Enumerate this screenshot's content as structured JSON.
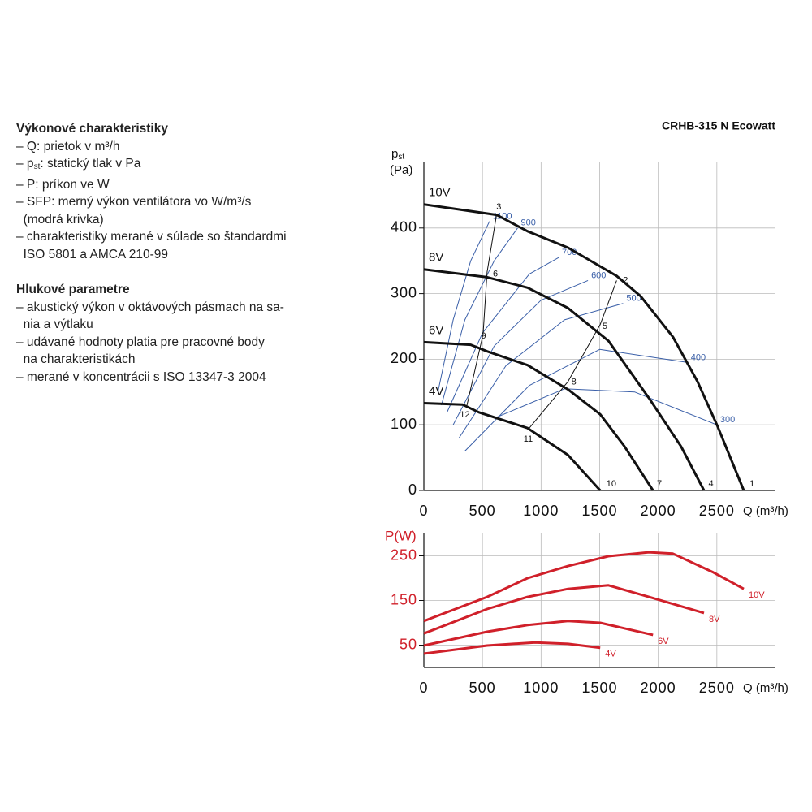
{
  "text": {
    "heading1": "Výkonové charakteristiky",
    "items1": [
      [
        {
          "t": "– Q: prietok v m³/h"
        }
      ],
      [
        {
          "t": "– p"
        },
        {
          "sub": "st"
        },
        {
          "t": ": statický tlak v Pa"
        }
      ],
      [
        {
          "t": "– P: príkon ve W"
        }
      ],
      [
        {
          "t": "– SFP: merný výkon ventilátora vo W/m³/s"
        }
      ],
      [
        {
          "t": "  (modrá krivka)"
        }
      ],
      [
        {
          "t": "– charakteristiky merané v súlade so štandardmi"
        }
      ],
      [
        {
          "t": "  ISO 5801 a AMCA 210-99"
        }
      ]
    ],
    "heading2": "Hlukové parametre",
    "items2": [
      [
        {
          "t": "– akustický výkon v oktávových pásmach na sa-"
        }
      ],
      [
        {
          "t": "  nia a výtlaku"
        }
      ],
      [
        {
          "t": "– udávané hodnoty platia pre pracovné body"
        }
      ],
      [
        {
          "t": "  na charakteristikách"
        }
      ],
      [
        {
          "t": "– merané v koncentrácii s ISO 13347-3 2004"
        }
      ]
    ]
  },
  "chart_data": [
    {
      "type": "line",
      "title": "CRHB-315 N Ecowatt",
      "ylabel": {
        "main": "p",
        "sub": "st",
        "unit": "(Pa)"
      },
      "xlabel": "Q (m³/h)",
      "xlim": [
        0,
        3000
      ],
      "ylim": [
        0,
        500
      ],
      "xticks": [
        0,
        500,
        1000,
        1500,
        2000,
        2500
      ],
      "yticks": [
        0,
        100,
        200,
        300,
        400
      ],
      "grid": true,
      "series": [
        {
          "name": "10V",
          "color": "#111111",
          "x": [
            0,
            620,
            885,
            1230,
            1645,
            1850,
            2125,
            2335,
            2505,
            2730
          ],
          "values": [
            436,
            420,
            395,
            370,
            327,
            296,
            234,
            166,
            98,
            0
          ]
        },
        {
          "name": "8V",
          "color": "#111111",
          "x": [
            0,
            540,
            885,
            1230,
            1575,
            1920,
            2195,
            2390
          ],
          "values": [
            337,
            325,
            309,
            278,
            228,
            141,
            67,
            0
          ]
        },
        {
          "name": "6V",
          "color": "#111111",
          "x": [
            0,
            400,
            540,
            885,
            1230,
            1505,
            1713,
            1955
          ],
          "values": [
            226,
            222,
            212,
            191,
            154,
            116,
            67,
            0
          ]
        },
        {
          "name": "4V",
          "color": "#111111",
          "x": [
            0,
            330,
            470,
            885,
            1230,
            1505
          ],
          "values": [
            133,
            131,
            119,
            95,
            54,
            0
          ]
        }
      ],
      "sfp_series": [
        {
          "name": "1100",
          "color": "#3a5fa8",
          "x": [
            120,
            250,
            400,
            560
          ],
          "values": [
            150,
            260,
            350,
            410
          ]
        },
        {
          "name": "900",
          "color": "#3a5fa8",
          "x": [
            150,
            350,
            600,
            800
          ],
          "values": [
            130,
            260,
            350,
            400
          ]
        },
        {
          "name": "700",
          "color": "#3a5fa8",
          "x": [
            200,
            500,
            900,
            1150
          ],
          "values": [
            120,
            240,
            330,
            355
          ]
        },
        {
          "name": "600",
          "color": "#3a5fa8",
          "x": [
            250,
            600,
            1000,
            1400
          ],
          "values": [
            100,
            220,
            290,
            320
          ]
        },
        {
          "name": "500",
          "color": "#3a5fa8",
          "x": [
            300,
            700,
            1200,
            1700
          ],
          "values": [
            80,
            190,
            260,
            285
          ]
        },
        {
          "name": "400",
          "color": "#3a5fa8",
          "x": [
            350,
            900,
            1500,
            2250
          ],
          "values": [
            60,
            160,
            215,
            195
          ]
        },
        {
          "name": "300",
          "color": "#3a5fa8",
          "x": [
            600,
            1200,
            1800,
            2500
          ],
          "values": [
            110,
            155,
            150,
            100
          ]
        }
      ],
      "operating_lines": [
        {
          "color": "#111111",
          "x": [
            620,
            540,
            505,
            365
          ],
          "values": [
            420,
            333,
            238,
            128
          ]
        },
        {
          "color": "#111111",
          "x": [
            1645,
            1505,
            1230,
            885
          ],
          "values": [
            320,
            253,
            166,
            92
          ]
        }
      ],
      "annotations": [
        {
          "text": "1",
          "x": 2800,
          "y": 10
        },
        {
          "text": "2",
          "x": 1720,
          "y": 320
        },
        {
          "text": "3",
          "x": 640,
          "y": 432
        },
        {
          "text": "4",
          "x": 2450,
          "y": 10
        },
        {
          "text": "5",
          "x": 1545,
          "y": 250
        },
        {
          "text": "6",
          "x": 610,
          "y": 330
        },
        {
          "text": "7",
          "x": 2010,
          "y": 10
        },
        {
          "text": "8",
          "x": 1280,
          "y": 165
        },
        {
          "text": "9",
          "x": 510,
          "y": 235
        },
        {
          "text": "10",
          "x": 1600,
          "y": 10
        },
        {
          "text": "11",
          "x": 890,
          "y": 78
        },
        {
          "text": "12",
          "x": 350,
          "y": 115
        }
      ]
    },
    {
      "type": "line",
      "ylabel": "P(W)",
      "xlabel": "Q (m³/h)",
      "xlim": [
        0,
        3000
      ],
      "ylim": [
        0,
        300
      ],
      "xticks": [
        0,
        500,
        1000,
        1500,
        2000,
        2500
      ],
      "yticks": [
        50,
        150,
        250
      ],
      "grid": true,
      "series": [
        {
          "name": "10V",
          "color": "#d0202a",
          "x": [
            0,
            540,
            885,
            1230,
            1575,
            1920,
            2125,
            2470,
            2730
          ],
          "values": [
            104,
            158,
            200,
            227,
            249,
            258,
            255,
            213,
            176
          ]
        },
        {
          "name": "8V",
          "color": "#d0202a",
          "x": [
            0,
            540,
            885,
            1230,
            1575,
            1920,
            2390
          ],
          "values": [
            76,
            131,
            158,
            176,
            184,
            158,
            122
          ]
        },
        {
          "name": "6V",
          "color": "#d0202a",
          "x": [
            0,
            540,
            885,
            1230,
            1505,
            1955
          ],
          "values": [
            49,
            80,
            95,
            104,
            100,
            73
          ]
        },
        {
          "name": "4V",
          "color": "#d0202a",
          "x": [
            0,
            540,
            950,
            1230,
            1505
          ],
          "values": [
            31,
            49,
            56,
            53,
            44
          ]
        }
      ]
    }
  ]
}
